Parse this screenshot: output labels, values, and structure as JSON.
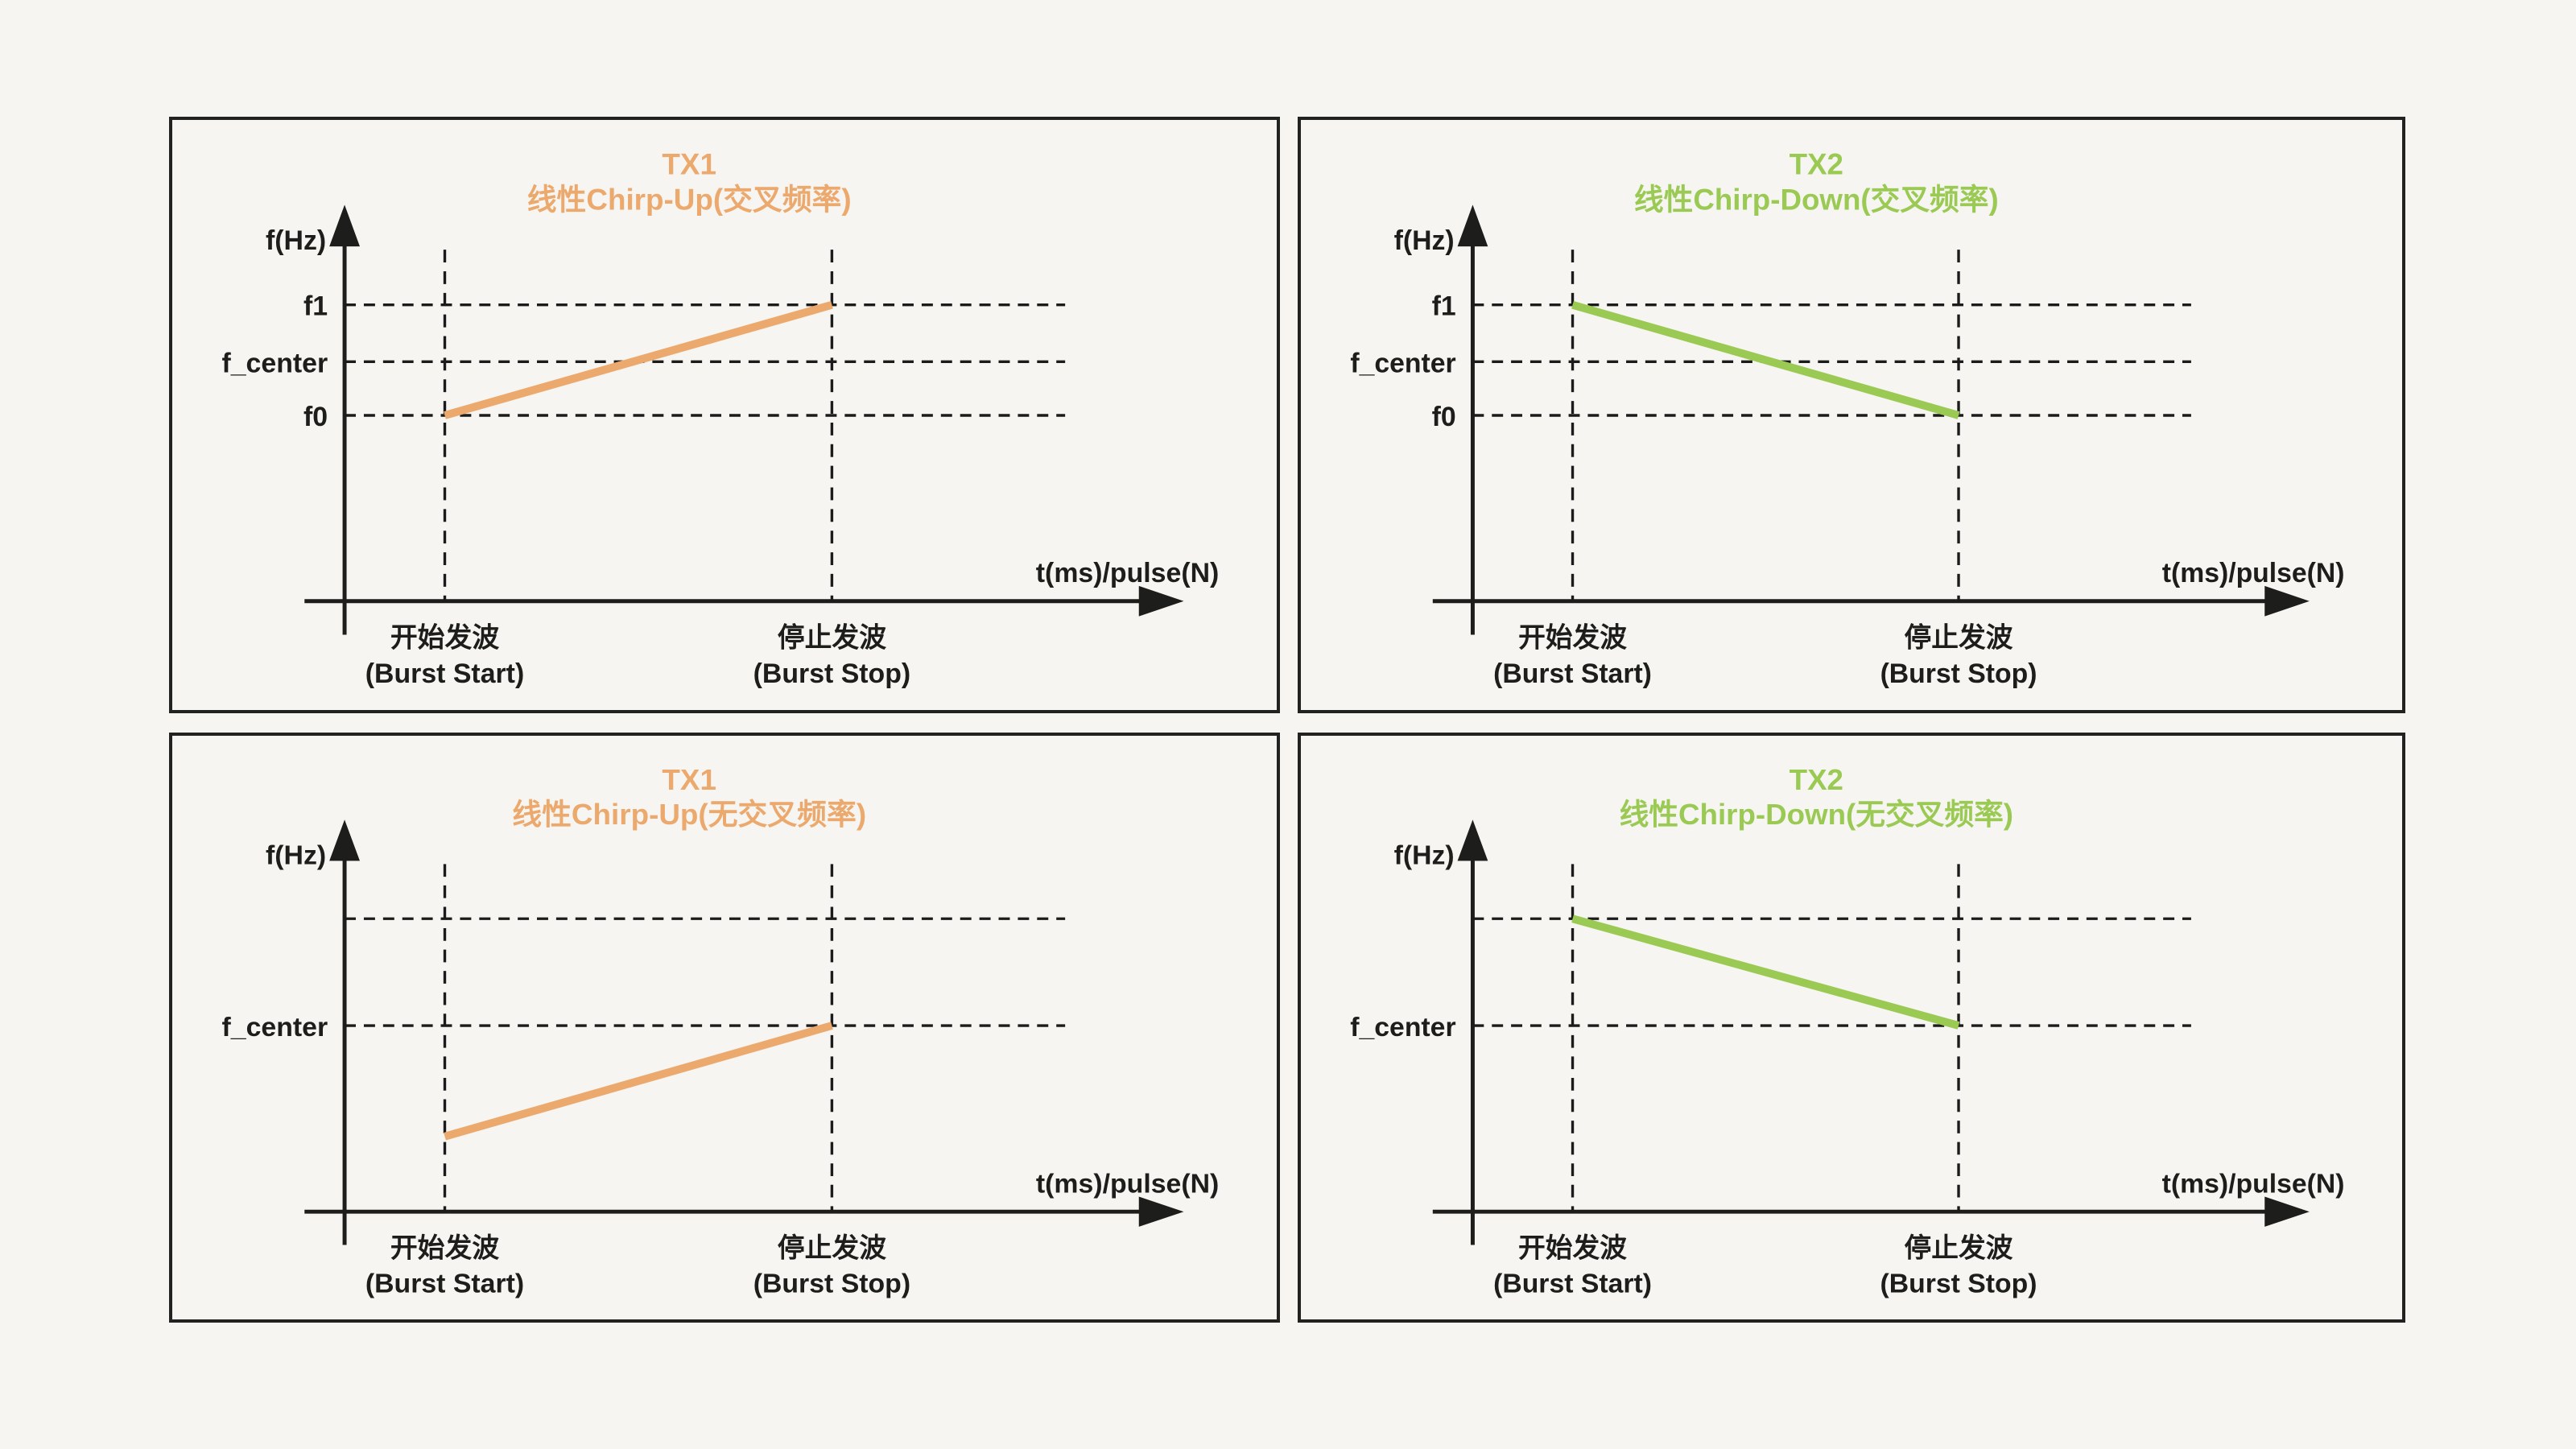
{
  "page": {
    "background": "#f7f5f1",
    "ink": "#1d1d1b"
  },
  "colors": {
    "tx1_orange": "#ECA96E",
    "tx2_green": "#9ACA54"
  },
  "chart_data": [
    {
      "id": "tx1-crossed",
      "type": "line",
      "position": "top-left",
      "title_line1": "TX1",
      "title_line2": "线性Chirp-Up(交叉频率)",
      "accent_color": "#ECA96E",
      "y_axis_label": "f(Hz)",
      "x_axis_label": "t(ms)/pulse(N)",
      "x_ticks": [
        {
          "zh": "开始发波",
          "en": "(Burst Start)",
          "x": "burst_start"
        },
        {
          "zh": "停止发波",
          "en": "(Burst Stop)",
          "x": "burst_stop"
        }
      ],
      "y_gridlines": [
        {
          "label": "f1",
          "y": 0.313
        },
        {
          "label": "f_center",
          "y": 0.41
        },
        {
          "label": "f0",
          "y": 0.501
        }
      ],
      "chirp": {
        "x0": "burst_start",
        "y0": 0.501,
        "y0_label": "f0",
        "x1": "burst_stop",
        "y1": 0.313,
        "y1_label": "f1",
        "direction": "up"
      }
    },
    {
      "id": "tx2-crossed",
      "type": "line",
      "position": "top-right",
      "title_line1": "TX2",
      "title_line2": "线性Chirp-Down(交叉频率)",
      "accent_color": "#9ACA54",
      "y_axis_label": "f(Hz)",
      "x_axis_label": "t(ms)/pulse(N)",
      "x_ticks": [
        {
          "zh": "开始发波",
          "en": "(Burst Start)",
          "x": "burst_start"
        },
        {
          "zh": "停止发波",
          "en": "(Burst Stop)",
          "x": "burst_stop"
        }
      ],
      "y_gridlines": [
        {
          "label": "f1",
          "y": 0.313
        },
        {
          "label": "f_center",
          "y": 0.41
        },
        {
          "label": "f0",
          "y": 0.501
        }
      ],
      "chirp": {
        "x0": "burst_start",
        "y0": 0.313,
        "y0_label": "f1",
        "x1": "burst_stop",
        "y1": 0.501,
        "y1_label": "f0",
        "direction": "down"
      }
    },
    {
      "id": "tx1-uncrossed",
      "type": "line",
      "position": "bottom-left",
      "title_line1": "TX1",
      "title_line2": "线性Chirp-Up(无交叉频率)",
      "accent_color": "#ECA96E",
      "y_axis_label": "f(Hz)",
      "x_axis_label": "t(ms)/pulse(N)",
      "x_ticks": [
        {
          "zh": "开始发波",
          "en": "(Burst Start)",
          "x": "burst_start"
        },
        {
          "zh": "停止发波",
          "en": "(Burst Stop)",
          "x": "burst_stop"
        }
      ],
      "y_gridlines": [
        {
          "label": "",
          "y": 0.313
        },
        {
          "label": "f_center",
          "y": 0.497
        }
      ],
      "chirp": {
        "x0": "burst_start",
        "y0": 0.686,
        "y0_label": "",
        "x1": "burst_stop",
        "y1": 0.497,
        "y1_label": "f_center",
        "direction": "up"
      }
    },
    {
      "id": "tx2-uncrossed",
      "type": "line",
      "position": "bottom-right",
      "title_line1": "TX2",
      "title_line2": "线性Chirp-Down(无交叉频率)",
      "accent_color": "#9ACA54",
      "y_axis_label": "f(Hz)",
      "x_axis_label": "t(ms)/pulse(N)",
      "x_ticks": [
        {
          "zh": "开始发波",
          "en": "(Burst Start)",
          "x": "burst_start"
        },
        {
          "zh": "停止发波",
          "en": "(Burst Stop)",
          "x": "burst_stop"
        }
      ],
      "y_gridlines": [
        {
          "label": "",
          "y": 0.313
        },
        {
          "label": "f_center",
          "y": 0.497
        }
      ],
      "chirp": {
        "x0": "burst_start",
        "y0": 0.313,
        "y0_label": "",
        "x1": "burst_stop",
        "y1": 0.497,
        "y1_label": "f_center",
        "direction": "down"
      }
    }
  ]
}
